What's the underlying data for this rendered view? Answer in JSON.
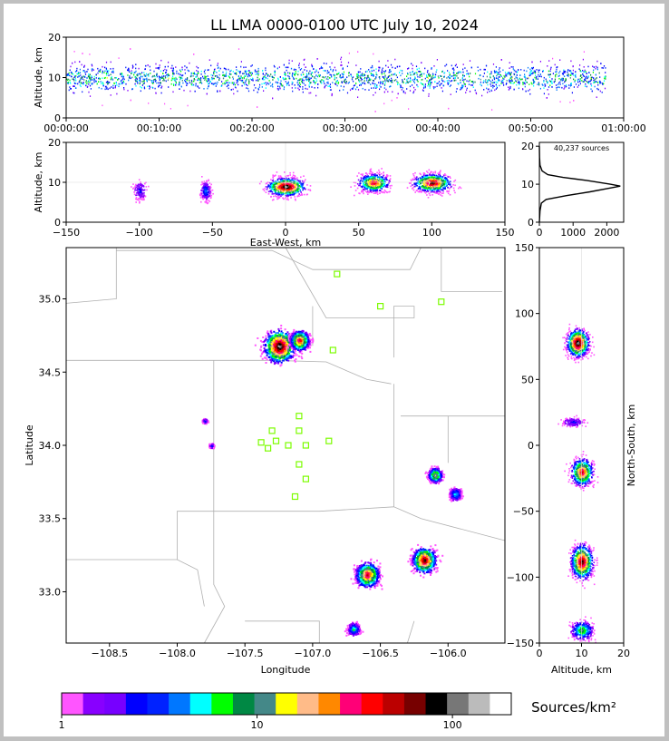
{
  "title": "LL LMA 0000-0100 UTC July 10, 2024",
  "colors": {
    "bar_face": "#c0c0c0",
    "frame_bg": "#ffffff",
    "station": "#7cfc00",
    "boundary": "#b0b0b0"
  },
  "colorbar": {
    "label": "Sources/km²",
    "colors": [
      "#ff55ff",
      "#8800ff",
      "#7700ff",
      "#0000ff",
      "#0022ff",
      "#0077ff",
      "#00ffff",
      "#00ff00",
      "#008844",
      "#448888",
      "#ffff00",
      "#ffbb88",
      "#ff8800",
      "#ff0077",
      "#ff0000",
      "#bb0000",
      "#770000",
      "#000000",
      "#777777",
      "#bbbbbb",
      "#ffffff"
    ],
    "ticks": [
      {
        "value": 1,
        "label": "1"
      },
      {
        "value": 10,
        "label": "10"
      },
      {
        "value": 100,
        "label": "100"
      }
    ],
    "range": [
      1,
      200
    ],
    "scale": "log"
  },
  "chart_data": [
    {
      "name": "time-height",
      "type": "heatmap",
      "ylabel": "Altitude, km",
      "xlabel": "",
      "x_ticks": [
        "00:00:00",
        "00:10:00",
        "00:20:00",
        "00:30:00",
        "00:40:00",
        "00:50:00",
        "01:00:00"
      ],
      "xlim_minutes": [
        0,
        60
      ],
      "ylim": [
        0,
        20
      ],
      "y_ticks": [
        0,
        10,
        20
      ],
      "density_center_km": 10
    },
    {
      "name": "east-west-altitude",
      "type": "heatmap",
      "xlabel": "East-West, km",
      "ylabel": "Altitude, km",
      "xlim": [
        -150,
        150
      ],
      "ylim": [
        0,
        20
      ],
      "x_ticks": [
        -150,
        -100,
        -50,
        0,
        50,
        100,
        150
      ],
      "y_ticks": [
        0,
        10,
        20
      ],
      "clusters": [
        {
          "x": 0,
          "z": 9,
          "intensity": 1.0,
          "width": 15
        },
        {
          "x": 60,
          "z": 10,
          "intensity": 0.8,
          "width": 12
        },
        {
          "x": 100,
          "z": 10,
          "intensity": 0.9,
          "width": 15
        },
        {
          "x": -55,
          "z": 8,
          "intensity": 0.3,
          "width": 4
        },
        {
          "x": -100,
          "z": 8,
          "intensity": 0.2,
          "width": 5
        }
      ]
    },
    {
      "name": "altitude-histogram",
      "type": "line",
      "annotation": "40,237 sources",
      "xlim": [
        0,
        2500
      ],
      "ylim": [
        0,
        21
      ],
      "x_ticks": [
        0,
        1000,
        2000
      ],
      "y_ticks": [
        0,
        10,
        20
      ],
      "points": [
        [
          0,
          0
        ],
        [
          20,
          3
        ],
        [
          60,
          5
        ],
        [
          200,
          6
        ],
        [
          800,
          7
        ],
        [
          1500,
          8
        ],
        [
          2100,
          9
        ],
        [
          2400,
          9.5
        ],
        [
          2100,
          10
        ],
        [
          1400,
          11
        ],
        [
          700,
          11.8
        ],
        [
          250,
          12.5
        ],
        [
          80,
          13.5
        ],
        [
          20,
          15
        ],
        [
          5,
          17
        ],
        [
          0,
          20
        ]
      ]
    },
    {
      "name": "plan-view",
      "type": "heatmap",
      "xlabel": "Longitude",
      "ylabel": "Latitude",
      "xlim": [
        -108.82,
        -105.58
      ],
      "ylim": [
        32.65,
        35.35
      ],
      "x_ticks": [
        -108.5,
        -108.0,
        -107.5,
        -107.0,
        -106.5,
        -106.0
      ],
      "y_ticks": [
        33.0,
        33.5,
        34.0,
        34.5,
        35.0
      ],
      "stations": [
        [
          -106.82,
          35.17
        ],
        [
          -106.5,
          34.95
        ],
        [
          -106.05,
          34.98
        ],
        [
          -106.85,
          34.65
        ],
        [
          -107.1,
          34.2
        ],
        [
          -107.1,
          34.1
        ],
        [
          -107.3,
          34.1
        ],
        [
          -107.38,
          34.02
        ],
        [
          -107.27,
          34.03
        ],
        [
          -107.33,
          33.98
        ],
        [
          -107.18,
          34.0
        ],
        [
          -107.05,
          34.0
        ],
        [
          -106.88,
          34.03
        ],
        [
          -107.1,
          33.87
        ],
        [
          -107.05,
          33.77
        ],
        [
          -107.13,
          33.65
        ]
      ],
      "clusters": [
        {
          "lon": -107.25,
          "lat": 34.68,
          "intensity": 1.0,
          "size": 0.13
        },
        {
          "lon": -107.1,
          "lat": 34.72,
          "intensity": 0.8,
          "size": 0.08
        },
        {
          "lon": -106.6,
          "lat": 33.12,
          "intensity": 0.8,
          "size": 0.1
        },
        {
          "lon": -106.18,
          "lat": 33.22,
          "intensity": 0.9,
          "size": 0.1
        },
        {
          "lon": -106.1,
          "lat": 33.8,
          "intensity": 0.6,
          "size": 0.06
        },
        {
          "lon": -105.95,
          "lat": 33.67,
          "intensity": 0.35,
          "size": 0.05
        },
        {
          "lon": -106.7,
          "lat": 32.75,
          "intensity": 0.4,
          "size": 0.05
        },
        {
          "lon": -107.75,
          "lat": 34.0,
          "intensity": 0.2,
          "size": 0.02
        },
        {
          "lon": -107.8,
          "lat": 34.17,
          "intensity": 0.2,
          "size": 0.02
        }
      ]
    },
    {
      "name": "altitude-north-south",
      "type": "heatmap",
      "xlabel": "Altitude, km",
      "ylabel": "North-South, km",
      "xlim": [
        0,
        20
      ],
      "ylim": [
        -150,
        150
      ],
      "x_ticks": [
        0,
        10,
        20
      ],
      "y_ticks": [
        -150,
        -100,
        -50,
        0,
        50,
        100,
        150
      ],
      "clusters": [
        {
          "z": 9,
          "y": 78,
          "intensity": 1.0,
          "height": 12
        },
        {
          "z": 10,
          "y": -20,
          "intensity": 0.8,
          "height": 12
        },
        {
          "z": 10,
          "y": -88,
          "intensity": 0.9,
          "height": 15
        },
        {
          "z": 10,
          "y": -140,
          "intensity": 0.5,
          "height": 8
        },
        {
          "z": 8,
          "y": 18,
          "intensity": 0.2,
          "height": 4
        }
      ]
    }
  ]
}
